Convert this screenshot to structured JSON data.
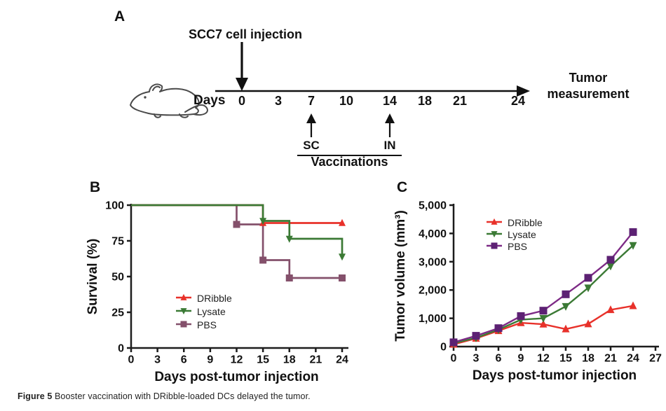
{
  "panel_a": {
    "label": "A",
    "title": "SCC7 cell injection",
    "days_label": "Days",
    "timeline_days": [
      "0",
      "3",
      "7",
      "10",
      "14",
      "18",
      "21",
      "24"
    ],
    "sc_label": "SC",
    "in_label": "IN",
    "vaccinations_label": "Vaccinations",
    "end_label_line1": "Tumor",
    "end_label_line2": "measurement",
    "mouse_icon": "mouse-outline-icon"
  },
  "chart_data": [
    {
      "panel_label": "B",
      "type": "line",
      "subtype": "kaplan-meier-step",
      "xlabel": "Days post-tumor injection",
      "ylabel": "Survival (%)",
      "xlim": [
        0,
        24
      ],
      "ylim": [
        0,
        100
      ],
      "xticks": [
        0,
        3,
        6,
        9,
        12,
        15,
        18,
        21,
        24
      ],
      "yticks": [
        0,
        25,
        50,
        75,
        100
      ],
      "grid": false,
      "legend_position": "inside-bottom-left",
      "series": [
        {
          "name": "DRibble",
          "color": "#e8312a",
          "marker": "triangle-up",
          "steps": [
            [
              0,
              100
            ],
            [
              15,
              100
            ],
            [
              15,
              87.5
            ],
            [
              24,
              87.5
            ]
          ],
          "markers": [
            [
              15,
              87.5
            ],
            [
              24,
              87.5
            ]
          ]
        },
        {
          "name": "Lysate",
          "color": "#3b7a35",
          "marker": "triangle-down",
          "steps": [
            [
              0,
              100
            ],
            [
              15,
              100
            ],
            [
              15,
              87.5
            ],
            [
              18,
              87.5
            ],
            [
              18,
              75
            ],
            [
              24,
              75
            ],
            [
              24,
              62.5
            ]
          ],
          "markers": [
            [
              15,
              87.5
            ],
            [
              18,
              75
            ],
            [
              24,
              62.5
            ]
          ]
        },
        {
          "name": "PBS",
          "color": "#84506b",
          "marker": "square",
          "steps": [
            [
              0,
              100
            ],
            [
              12,
              100
            ],
            [
              12,
              87.5
            ],
            [
              15,
              87.5
            ],
            [
              15,
              62.5
            ],
            [
              18,
              62.5
            ],
            [
              18,
              50
            ],
            [
              24,
              50
            ]
          ],
          "markers": [
            [
              12,
              87.5
            ],
            [
              15,
              62.5
            ],
            [
              18,
              50
            ],
            [
              24,
              50
            ]
          ]
        }
      ]
    },
    {
      "panel_label": "C",
      "type": "line",
      "xlabel": "Days post-tumor injection",
      "ylabel": "Tumor volume (mm³)",
      "xlim": [
        0,
        27
      ],
      "ylim": [
        0,
        5000
      ],
      "xticks": [
        0,
        3,
        6,
        9,
        12,
        15,
        18,
        21,
        24,
        27
      ],
      "yticks": [
        0,
        1000,
        2000,
        3000,
        4000,
        5000
      ],
      "ytick_labels": [
        "0",
        "1,000",
        "2,000",
        "3,000",
        "4,000",
        "5,000"
      ],
      "grid": false,
      "legend_position": "inside-top-left",
      "x": [
        0,
        3,
        6,
        9,
        12,
        15,
        18,
        21,
        24
      ],
      "series": [
        {
          "name": "DRibble",
          "color": "#e8312a",
          "marker": "triangle-up",
          "values": [
            80,
            290,
            560,
            840,
            790,
            620,
            800,
            1300,
            1440
          ]
        },
        {
          "name": "Lysate",
          "color": "#3b7a35",
          "marker": "triangle-down",
          "values": [
            120,
            310,
            600,
            950,
            1000,
            1420,
            2080,
            2850,
            3580
          ]
        },
        {
          "name": "PBS",
          "color": "#7d2a86",
          "marker_color": "#5c2173",
          "marker": "square",
          "values": [
            150,
            380,
            650,
            1080,
            1270,
            1850,
            2430,
            3070,
            4050
          ]
        }
      ]
    }
  ],
  "caption": {
    "prefix": "Figure 5",
    "text": " Booster vaccination with DRibble-loaded DCs delayed the tumor."
  }
}
